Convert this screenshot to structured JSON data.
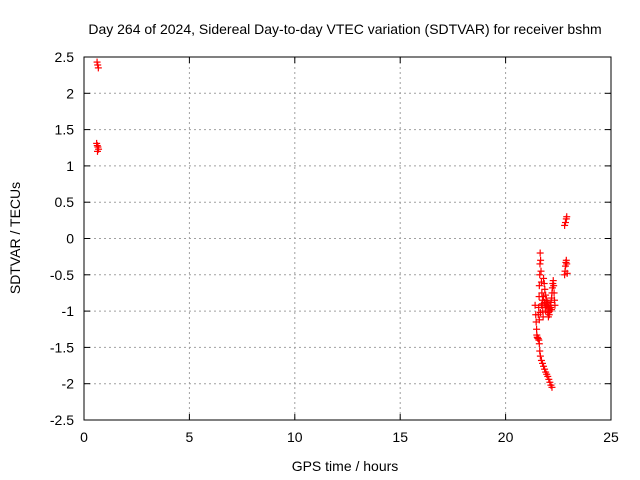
{
  "chart_data": {
    "type": "scatter",
    "title": "Day 264 of 2024, Sidereal Day-to-day VTEC variation (SDTVAR) for receiver bshm",
    "xlabel": "GPS time / hours",
    "ylabel": "SDTVAR / TECUs",
    "xlim": [
      0,
      25
    ],
    "ylim": [
      -2.5,
      2.5
    ],
    "xticks": [
      0,
      5,
      10,
      15,
      20,
      25
    ],
    "yticks": [
      -2.5,
      -2,
      -1.5,
      -1,
      -0.5,
      0,
      0.5,
      1,
      1.5,
      2,
      2.5
    ],
    "xtick_labels": [
      "0",
      "5",
      "10",
      "15",
      "20",
      "25"
    ],
    "ytick_labels": [
      "-2.5",
      "-2",
      "-1.5",
      "-1",
      "-0.5",
      "0",
      "0.5",
      "1",
      "1.5",
      "2",
      "2.5"
    ],
    "grid": true,
    "marker": "+",
    "series": [
      {
        "name": "SDTVAR",
        "color": "#ff0000",
        "points": [
          [
            0.62,
            2.43
          ],
          [
            0.65,
            2.39
          ],
          [
            0.68,
            2.35
          ],
          [
            0.6,
            1.31
          ],
          [
            0.63,
            1.28
          ],
          [
            0.66,
            1.26
          ],
          [
            0.69,
            1.23
          ],
          [
            0.64,
            1.2
          ],
          [
            21.4,
            -0.92
          ],
          [
            21.43,
            -1.05
          ],
          [
            21.45,
            -1.15
          ],
          [
            21.47,
            -1.25
          ],
          [
            21.48,
            -1.33
          ],
          [
            21.5,
            -1.36
          ],
          [
            21.52,
            -1.37
          ],
          [
            21.55,
            -1.38
          ],
          [
            21.58,
            -1.4
          ],
          [
            21.6,
            -1.45
          ],
          [
            21.62,
            -1.55
          ],
          [
            21.65,
            -1.62
          ],
          [
            21.7,
            -1.68
          ],
          [
            21.75,
            -1.72
          ],
          [
            21.8,
            -1.76
          ],
          [
            21.85,
            -1.8
          ],
          [
            21.9,
            -1.84
          ],
          [
            21.95,
            -1.87
          ],
          [
            22.0,
            -1.9
          ],
          [
            22.05,
            -1.94
          ],
          [
            22.1,
            -1.98
          ],
          [
            22.15,
            -2.02
          ],
          [
            22.2,
            -2.05
          ],
          [
            21.55,
            -1.05
          ],
          [
            21.57,
            -0.95
          ],
          [
            21.59,
            -0.8
          ],
          [
            21.6,
            -0.65
          ],
          [
            21.62,
            -0.5
          ],
          [
            21.63,
            -0.35
          ],
          [
            21.64,
            -0.2
          ],
          [
            21.66,
            -0.3
          ],
          [
            21.68,
            -0.45
          ],
          [
            21.7,
            -0.6
          ],
          [
            21.72,
            -0.75
          ],
          [
            21.74,
            -0.9
          ],
          [
            21.76,
            -1.0
          ],
          [
            21.78,
            -1.08
          ],
          [
            21.6,
            -1.12
          ],
          [
            21.65,
            -1.02
          ],
          [
            21.7,
            -0.92
          ],
          [
            21.75,
            -0.85
          ],
          [
            21.8,
            -0.8
          ],
          [
            21.85,
            -0.88
          ],
          [
            21.88,
            -0.95
          ],
          [
            21.9,
            -1.0
          ],
          [
            21.92,
            -0.95
          ],
          [
            21.94,
            -0.9
          ],
          [
            21.97,
            -0.86
          ],
          [
            22.0,
            -0.9
          ],
          [
            22.03,
            -0.95
          ],
          [
            22.06,
            -1.0
          ],
          [
            22.09,
            -0.97
          ],
          [
            22.12,
            -0.92
          ],
          [
            22.15,
            -0.88
          ],
          [
            22.18,
            -0.82
          ],
          [
            22.2,
            -0.75
          ],
          [
            22.22,
            -0.68
          ],
          [
            22.24,
            -0.62
          ],
          [
            22.26,
            -0.58
          ],
          [
            22.28,
            -0.65
          ],
          [
            22.3,
            -0.75
          ],
          [
            22.32,
            -0.85
          ],
          [
            22.34,
            -0.92
          ],
          [
            21.8,
            -0.55
          ],
          [
            21.83,
            -0.62
          ],
          [
            21.86,
            -0.7
          ],
          [
            21.9,
            -0.78
          ],
          [
            21.93,
            -0.85
          ],
          [
            21.96,
            -0.93
          ],
          [
            22.0,
            -1.02
          ],
          [
            22.03,
            -1.08
          ],
          [
            22.07,
            -1.05
          ],
          [
            22.1,
            -1.0
          ],
          [
            22.14,
            -0.95
          ],
          [
            22.18,
            -0.98
          ],
          [
            22.8,
            -0.5
          ],
          [
            22.82,
            -0.45
          ],
          [
            22.84,
            -0.38
          ],
          [
            22.86,
            -0.33
          ],
          [
            22.88,
            -0.3
          ],
          [
            22.9,
            -0.35
          ],
          [
            22.92,
            -0.48
          ],
          [
            22.8,
            0.18
          ],
          [
            22.84,
            0.22
          ],
          [
            22.88,
            0.27
          ],
          [
            22.9,
            0.3
          ]
        ]
      }
    ]
  }
}
